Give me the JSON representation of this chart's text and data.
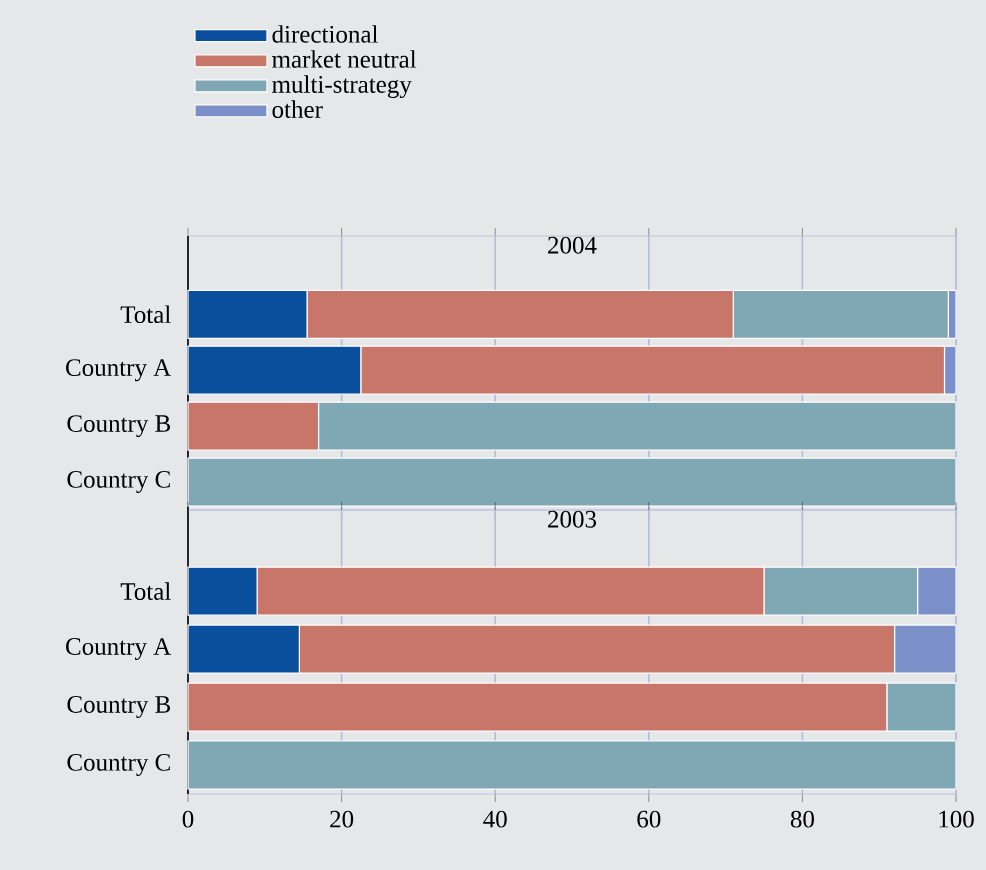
{
  "chart_data": [
    {
      "type": "bar",
      "orientation": "horizontal",
      "stacked": true,
      "title": "2004",
      "categories": [
        "Total",
        "Country A",
        "Country B",
        "Country C"
      ],
      "series": [
        {
          "name": "directional",
          "color": "#0a4f9e",
          "values": [
            15.5,
            22.5,
            0,
            0
          ]
        },
        {
          "name": "market neutral",
          "color": "#c8766a",
          "values": [
            55.5,
            76,
            17,
            0
          ]
        },
        {
          "name": "multi-strategy",
          "color": "#7fa8b4",
          "values": [
            28,
            0,
            83,
            100
          ]
        },
        {
          "name": "other",
          "color": "#7b8fc9",
          "values": [
            1,
            1.5,
            0,
            0
          ]
        }
      ],
      "xlim": [
        0,
        100
      ],
      "xticks": [
        0,
        20,
        40,
        60,
        80,
        100
      ],
      "grid": "x",
      "legend": "top left",
      "tick_labels": "y"
    },
    {
      "type": "bar",
      "orientation": "horizontal",
      "stacked": true,
      "title": "2003",
      "categories": [
        "Total",
        "Country A",
        "Country B",
        "Country C"
      ],
      "series": [
        {
          "color": "#0a4f9e",
          "values": [
            9,
            14.5,
            0,
            0
          ]
        },
        {
          "color": "#c8766a",
          "values": [
            66,
            77.5,
            91,
            0
          ]
        },
        {
          "color": "#7fa8b4",
          "values": [
            20,
            0,
            9,
            100
          ]
        },
        {
          "color": "#7b8fc9",
          "values": [
            5,
            8,
            0,
            0
          ]
        }
      ],
      "xlim": [
        0,
        100
      ],
      "xticks": [
        0,
        20,
        40,
        60,
        80,
        100
      ],
      "grid": "x"
    }
  ]
}
